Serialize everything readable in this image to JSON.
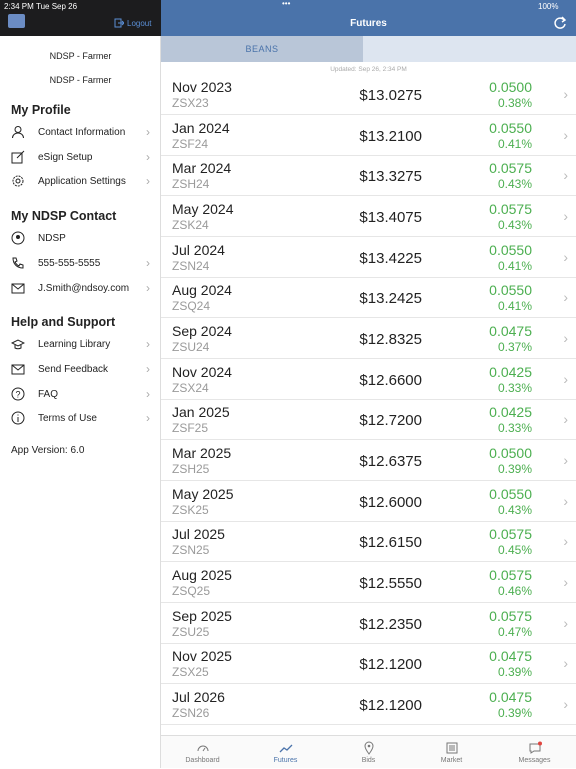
{
  "status_bar": {
    "time": "2:34 PM",
    "date": "Tue Sep 26",
    "battery": "100%"
  },
  "sidebar": {
    "logout": "Logout",
    "user_lines": [
      "NDSP - Farmer",
      "NDSP - Farmer"
    ],
    "sections": [
      {
        "title": "My Profile",
        "items": [
          {
            "label": "Contact Information",
            "chevron": true
          },
          {
            "label": "eSign Setup",
            "chevron": true
          },
          {
            "label": "Application Settings",
            "chevron": true
          }
        ]
      },
      {
        "title": "My NDSP Contact",
        "items": [
          {
            "label": "NDSP",
            "chevron": false
          },
          {
            "label": "555-555-5555",
            "chevron": true
          },
          {
            "label": "J.Smith@ndsoy.com",
            "chevron": true
          }
        ]
      },
      {
        "title": "Help and Support",
        "items": [
          {
            "label": "Learning Library",
            "chevron": true
          },
          {
            "label": "Send Feedback",
            "chevron": true
          },
          {
            "label": "FAQ",
            "chevron": true
          },
          {
            "label": "Terms of Use",
            "chevron": true
          }
        ]
      }
    ],
    "app_version": "App Version: 6.0"
  },
  "header": {
    "title": "Futures"
  },
  "tabs": [
    "BEANS"
  ],
  "updated": "Updated: Sep 26, 2:34 PM",
  "rows": [
    {
      "month": "Nov 2023",
      "code": "ZSX23",
      "price": "$13.0275",
      "change": "0.0500",
      "percent": "0.38%"
    },
    {
      "month": "Jan 2024",
      "code": "ZSF24",
      "price": "$13.2100",
      "change": "0.0550",
      "percent": "0.41%"
    },
    {
      "month": "Mar 2024",
      "code": "ZSH24",
      "price": "$13.3275",
      "change": "0.0575",
      "percent": "0.43%"
    },
    {
      "month": "May 2024",
      "code": "ZSK24",
      "price": "$13.4075",
      "change": "0.0575",
      "percent": "0.43%"
    },
    {
      "month": "Jul 2024",
      "code": "ZSN24",
      "price": "$13.4225",
      "change": "0.0550",
      "percent": "0.41%"
    },
    {
      "month": "Aug 2024",
      "code": "ZSQ24",
      "price": "$13.2425",
      "change": "0.0550",
      "percent": "0.41%"
    },
    {
      "month": "Sep 2024",
      "code": "ZSU24",
      "price": "$12.8325",
      "change": "0.0475",
      "percent": "0.37%"
    },
    {
      "month": "Nov 2024",
      "code": "ZSX24",
      "price": "$12.6600",
      "change": "0.0425",
      "percent": "0.33%"
    },
    {
      "month": "Jan 2025",
      "code": "ZSF25",
      "price": "$12.7200",
      "change": "0.0425",
      "percent": "0.33%"
    },
    {
      "month": "Mar 2025",
      "code": "ZSH25",
      "price": "$12.6375",
      "change": "0.0500",
      "percent": "0.39%"
    },
    {
      "month": "May 2025",
      "code": "ZSK25",
      "price": "$12.6000",
      "change": "0.0550",
      "percent": "0.43%"
    },
    {
      "month": "Jul 2025",
      "code": "ZSN25",
      "price": "$12.6150",
      "change": "0.0575",
      "percent": "0.45%"
    },
    {
      "month": "Aug 2025",
      "code": "ZSQ25",
      "price": "$12.5550",
      "change": "0.0575",
      "percent": "0.46%"
    },
    {
      "month": "Sep 2025",
      "code": "ZSU25",
      "price": "$12.2350",
      "change": "0.0575",
      "percent": "0.47%"
    },
    {
      "month": "Nov 2025",
      "code": "ZSX25",
      "price": "$12.1200",
      "change": "0.0475",
      "percent": "0.39%"
    },
    {
      "month": "Jul 2026",
      "code": "ZSN26",
      "price": "$12.1200",
      "change": "0.0475",
      "percent": "0.39%"
    }
  ],
  "tab_bar": [
    "Dashboard",
    "Futures",
    "Bids",
    "Market",
    "Messages"
  ],
  "active_tab": 1
}
